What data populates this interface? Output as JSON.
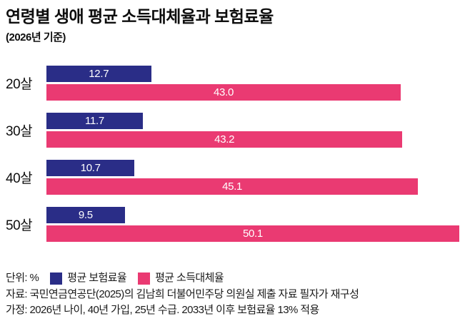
{
  "header": {
    "title": "연령별 생애 평균 소득대체율과 보험료율",
    "subtitle": "(2026년 기준)"
  },
  "legend": {
    "unit_label": "단위: %",
    "series": [
      {
        "label": "평균 보험료율",
        "color": "#2a2d87"
      },
      {
        "label": "평균 소득대체율",
        "color": "#ea3a72"
      }
    ]
  },
  "footer": {
    "source": "자료: 국민연금연공단(2025)의 김남희 더불어민주당 의원실 제출 자료 필자가 재구성",
    "assumption": "가정: 2026년 나이, 40년 가입, 25년 수급. 2033년 이후 보험료율 13% 적용"
  },
  "chart_data": {
    "type": "bar",
    "orientation": "horizontal",
    "title": "연령별 생애 평균 소득대체율과 보험료율",
    "subtitle": "(2026년 기준)",
    "unit": "%",
    "categories": [
      "20살",
      "30살",
      "40살",
      "50살"
    ],
    "series": [
      {
        "name": "평균 보험료율",
        "color": "#2a2d87",
        "values": [
          12.7,
          11.7,
          10.7,
          9.5
        ]
      },
      {
        "name": "평균 소득대체율",
        "color": "#ea3a72",
        "values": [
          43.0,
          43.2,
          45.1,
          50.1
        ]
      }
    ],
    "xlim": [
      0,
      50.8
    ],
    "grid": false,
    "value_labels": "inside-center-white",
    "legend_position": "bottom-left"
  }
}
